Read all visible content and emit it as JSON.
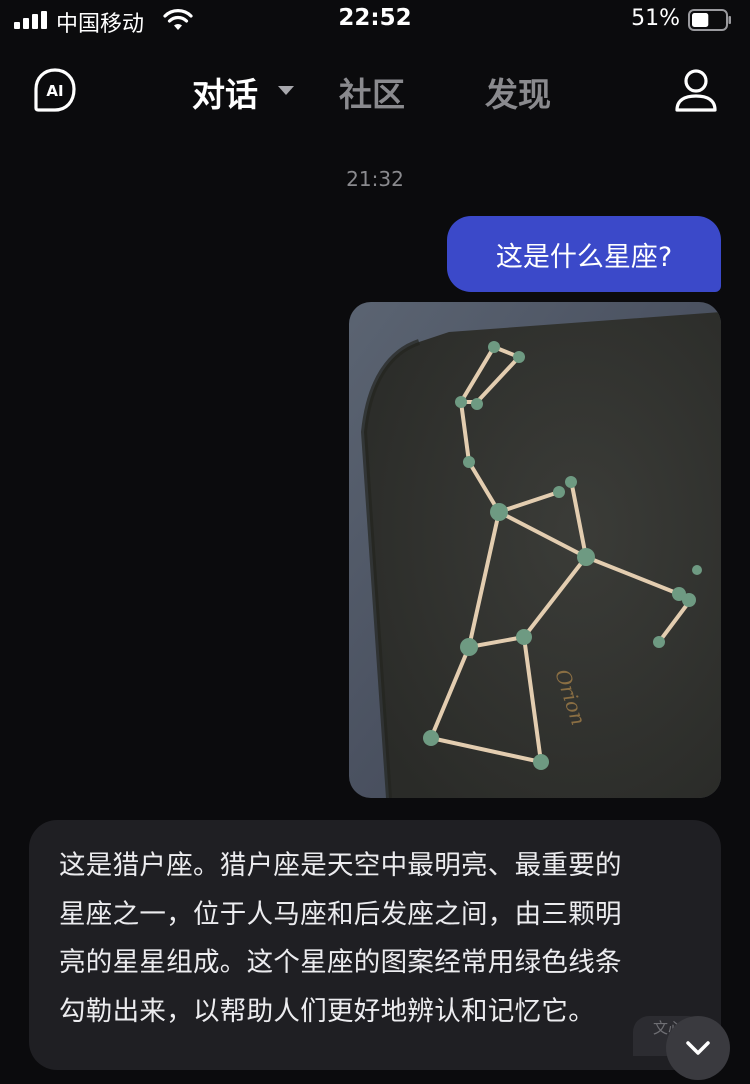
{
  "status_bar": {
    "carrier": "中国移动",
    "time": "22:52",
    "battery_percent": "51%",
    "battery_level": 0.51
  },
  "nav": {
    "tabs": [
      {
        "label": "对话"
      },
      {
        "label": "社区"
      },
      {
        "label": "发现"
      }
    ],
    "logo_text": "AI"
  },
  "chat": {
    "timestamp": "21:32",
    "user_message": "这是什么星座?",
    "photo_caption": "Orion",
    "ai_message_lines": [
      "这是猎户座。猎户座是天空中最明亮、最重要的",
      "星座之一，位于人马座和后发座之间，由三颗明",
      "亮的星星组成。这个星座的图案经常用绿色线条",
      "勾勒出来，以帮助人们更好地辨认和记忆它。"
    ],
    "badge": "文心"
  },
  "colors": {
    "background": "#0b0b0d",
    "user_bubble": "#3b49c9",
    "ai_bubble": "#1f1f23",
    "inactive_tab": "#8a8a8e"
  }
}
